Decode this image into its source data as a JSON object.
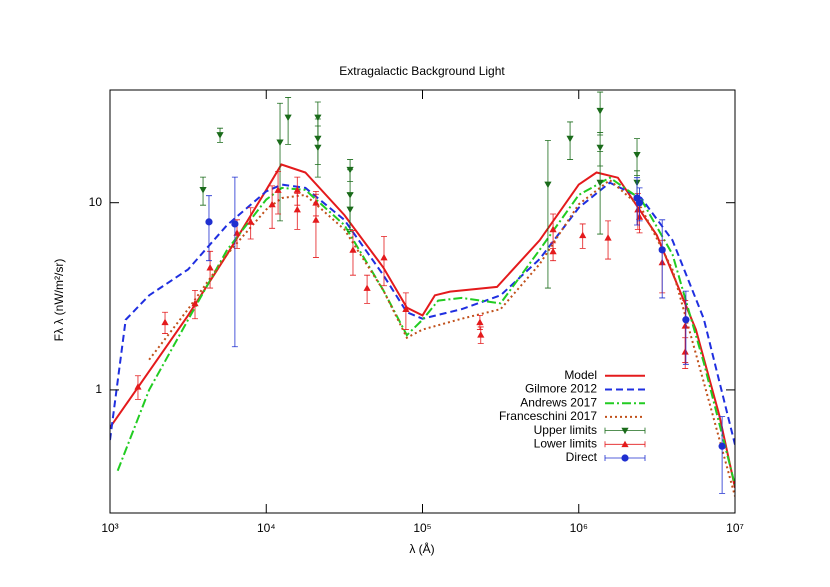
{
  "chart_data": {
    "type": "line",
    "title": "Extragalactic Background Light",
    "x_label": "λ (Å)",
    "y_label": "Fλ λ (nW/m²/sr)",
    "log_x": true,
    "log_y": true,
    "xlim": [
      1000,
      10000000
    ],
    "ylim": [
      0.22,
      40
    ],
    "xticks": [
      {
        "value": 1000,
        "label": "10³"
      },
      {
        "value": 10000,
        "label": "10⁴"
      },
      {
        "value": 100000,
        "label": "10⁵"
      },
      {
        "value": 1000000,
        "label": "10⁶"
      },
      {
        "value": 10000000,
        "label": "10⁷"
      }
    ],
    "yticks": [
      1,
      10
    ],
    "legend": "lower right",
    "series": [
      {
        "name": "Model",
        "kind": "line",
        "color": "#e41a1c",
        "dash": "solid",
        "x": [
          1000,
          3160,
          5620,
          10000,
          12500,
          17800,
          31600,
          56200,
          79400,
          100000,
          120000,
          150000,
          300000,
          562000,
          1000000,
          1300000,
          1780000,
          3160000,
          5620000,
          7940000,
          10000000
        ],
        "values": [
          0.63,
          2.5,
          5.3,
          11.7,
          16,
          14.5,
          8.6,
          4.5,
          2.75,
          2.5,
          3.2,
          3.35,
          3.55,
          6.3,
          12.5,
          14.5,
          13.6,
          6.7,
          2.1,
          0.73,
          0.3
        ]
      },
      {
        "name": "Gilmore 2012",
        "kind": "line",
        "color": "#1f2fe0",
        "dash": "dashed",
        "x": [
          1000,
          1260,
          1780,
          3160,
          5620,
          10000,
          12600,
          17800,
          31600,
          56200,
          79400,
          100000,
          178000,
          316000,
          562000,
          1000000,
          1580000,
          2510000,
          3980000,
          6310000,
          10000000
        ],
        "values": [
          0.54,
          2.37,
          3.2,
          4.4,
          7.6,
          11.5,
          12.5,
          12,
          8.1,
          4.1,
          2.6,
          2.4,
          2.7,
          3.2,
          5,
          9.4,
          12.8,
          10.6,
          6.3,
          2.4,
          0.51
        ]
      },
      {
        "name": "Andrews 2017",
        "kind": "line",
        "color": "#22cc22",
        "dash": "dashdot",
        "x": [
          1120,
          1780,
          3160,
          5620,
          10000,
          12600,
          17800,
          31600,
          56200,
          79400,
          100000,
          126000,
          178000,
          316000,
          562000,
          1000000,
          1580000,
          2510000,
          3980000,
          6310000,
          10000000
        ],
        "values": [
          0.37,
          1,
          2.37,
          5.6,
          10.4,
          12,
          11.7,
          7.6,
          3.4,
          1.96,
          2.37,
          3,
          3.1,
          2.9,
          5.6,
          11,
          13.6,
          10.4,
          5.3,
          1.4,
          0.31
        ]
      },
      {
        "name": "Franceschini 2017",
        "kind": "line",
        "color": "#c0501a",
        "dash": "dotted",
        "x": [
          1780,
          3160,
          5620,
          10000,
          12600,
          17800,
          31600,
          56200,
          79400,
          100000,
          178000,
          316000,
          562000,
          1000000,
          1580000,
          2510000,
          3980000,
          6310000,
          10000000
        ],
        "values": [
          1.45,
          2.7,
          5.3,
          9.2,
          10.6,
          11,
          7.2,
          3.4,
          1.9,
          2.1,
          2.4,
          2.7,
          4.7,
          9.8,
          13.2,
          9.4,
          4.4,
          1.1,
          0.27
        ]
      },
      {
        "name": "Upper limits",
        "kind": "errorbar",
        "marker": "triangle-down",
        "color": "#1a6b1a",
        "x": [
          3940,
          5060,
          12250,
          13800,
          21400,
          21400,
          21400,
          34400,
          34400,
          34400,
          635000,
          880000,
          1370000,
          1370000,
          1370000,
          2360000,
          2360000
        ],
        "values": [
          11.7,
          23,
          21,
          28.5,
          22,
          28.5,
          19.7,
          11,
          15,
          9.2,
          12.5,
          22,
          31,
          19.7,
          12.8,
          18,
          12.8
        ],
        "errors": [
          2,
          2,
          13,
          8,
          6,
          6,
          6,
          4,
          2,
          2,
          9,
          5,
          8,
          4,
          6,
          4,
          2
        ]
      },
      {
        "name": "Lower limits",
        "kind": "errorbar",
        "marker": "triangle-up",
        "color": "#e41a1c",
        "x": [
          1510,
          2250,
          3500,
          4370,
          6500,
          7950,
          10900,
          11900,
          15800,
          15800,
          20800,
          20800,
          35900,
          44200,
          56700,
          78300,
          233000,
          236000,
          685000,
          685000,
          1060000,
          1540000,
          2390000,
          2450000,
          3420000,
          4800000,
          4800000
        ],
        "values": [
          1.04,
          2.3,
          2.9,
          4.5,
          6.9,
          7.9,
          9.8,
          11.7,
          9.2,
          11.7,
          10,
          8.1,
          5.6,
          3.5,
          5.1,
          2.7,
          2.3,
          1.97,
          7.2,
          5.5,
          6.7,
          6.5,
          9.2,
          8.4,
          4.8,
          2.2,
          1.6
        ],
        "errors": [
          0.15,
          0.3,
          0.5,
          1,
          1.2,
          1.5,
          2.5,
          3,
          2,
          2,
          1.5,
          3,
          1.5,
          0.6,
          1.5,
          0.6,
          0.2,
          0.2,
          1.5,
          0.6,
          1,
          1.5,
          2,
          1.5,
          1.5,
          0.8,
          0.3
        ]
      },
      {
        "name": "Direct",
        "kind": "errorbar",
        "marker": "circle",
        "color": "#1f2fd0",
        "x": [
          4300,
          6300,
          2360000,
          2450000,
          3420000,
          4850000,
          8270000
        ],
        "values": [
          7.9,
          7.7,
          10.6,
          10,
          5.6,
          2.37,
          0.5
        ],
        "errors": [
          3,
          6,
          3,
          2,
          2.5,
          1,
          0.22
        ]
      }
    ]
  }
}
